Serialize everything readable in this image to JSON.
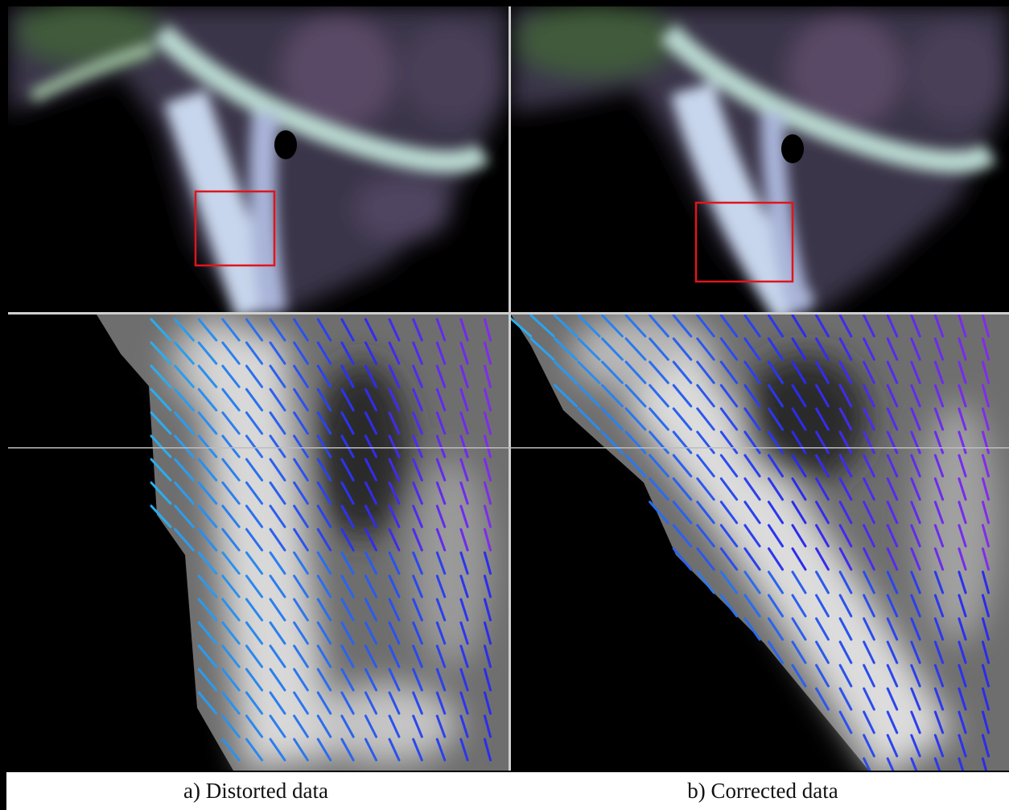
{
  "figure": {
    "panels": [
      {
        "caption": "a) Distorted data"
      },
      {
        "caption": "b) Corrected data"
      }
    ]
  }
}
